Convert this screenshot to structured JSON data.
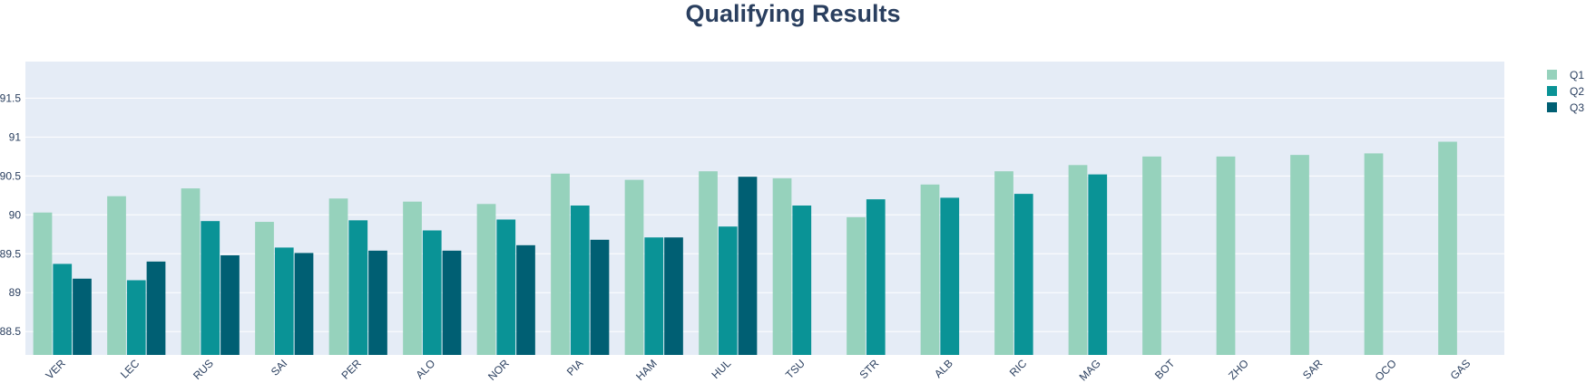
{
  "chart_data": {
    "type": "bar",
    "title": "Qualifying Results",
    "xlabel": "",
    "ylabel": "",
    "categories": [
      "VER",
      "LEC",
      "RUS",
      "SAI",
      "PER",
      "ALO",
      "NOR",
      "PIA",
      "HAM",
      "HUL",
      "TSU",
      "STR",
      "ALB",
      "RIC",
      "MAG",
      "BOT",
      "ZHO",
      "SAR",
      "OCO",
      "GAS"
    ],
    "series": [
      {
        "name": "Q1",
        "color": "#96d2bc",
        "values": [
          90.03,
          90.24,
          90.34,
          89.91,
          90.21,
          90.17,
          90.14,
          90.53,
          90.45,
          90.56,
          90.47,
          89.97,
          90.39,
          90.56,
          90.64,
          90.75,
          90.75,
          90.77,
          90.79,
          90.94
        ]
      },
      {
        "name": "Q2",
        "color": "#0a9396",
        "values": [
          89.37,
          89.16,
          89.92,
          89.58,
          89.93,
          89.8,
          89.94,
          90.12,
          89.71,
          89.85,
          90.12,
          90.2,
          90.22,
          90.27,
          90.52,
          null,
          null,
          null,
          null,
          null
        ]
      },
      {
        "name": "Q3",
        "color": "#005f73",
        "values": [
          89.18,
          89.4,
          89.48,
          89.51,
          89.54,
          89.54,
          89.61,
          89.68,
          89.71,
          90.49,
          null,
          null,
          null,
          null,
          null,
          null,
          null,
          null,
          null,
          null
        ]
      }
    ],
    "ylim": [
      88.2,
      91.97
    ],
    "yticks": [
      "88.5",
      "89",
      "89.5",
      "90",
      "90.5",
      "91",
      "91.5"
    ],
    "grid": true,
    "legend_position": "top-right",
    "plot_background": "#e5ecf6"
  }
}
